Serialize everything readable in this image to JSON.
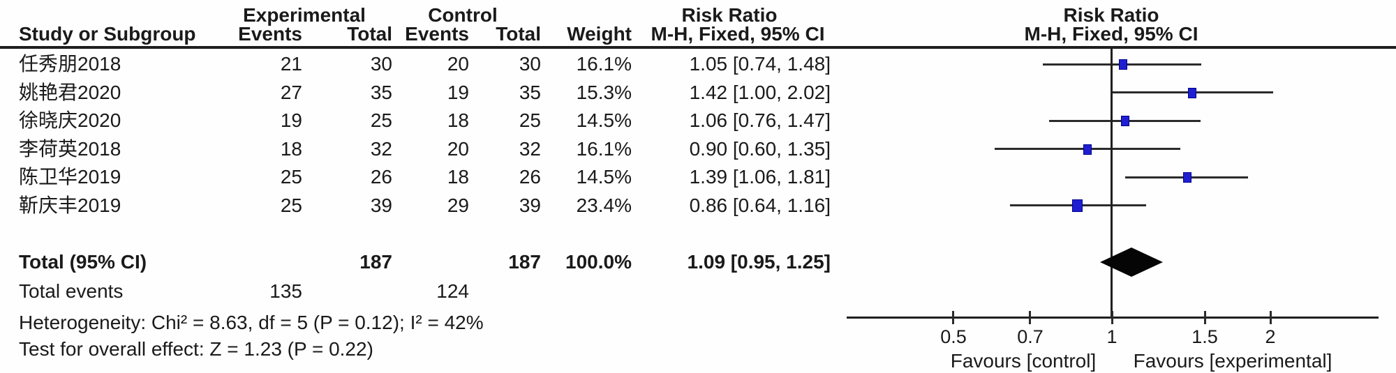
{
  "colors": {
    "marker_blue": "#1f1fd1",
    "line_dark": "#2b2b2b",
    "diamond_black": "#050505",
    "text": "#1a1a1a",
    "background": "#fefefe"
  },
  "table_header": {
    "study_col": "Study or Subgroup",
    "group_experimental": "Experimental",
    "group_control": "Control",
    "group_risk_ratio": "Risk Ratio",
    "events": "Events",
    "total": "Total",
    "events2": "Events",
    "total2": "Total",
    "weight": "Weight",
    "mh_fixed": "M-H, Fixed, 95% CI"
  },
  "plot_header": {
    "title": "Risk Ratio",
    "subtitle": "M-H, Fixed, 95% CI"
  },
  "chart_data": {
    "type": "forest",
    "x_scale": "log",
    "axis_ticks": [
      "0.5",
      "0.7",
      "1",
      "1.5",
      "2"
    ],
    "axis_tick_values": [
      0.5,
      0.7,
      1,
      1.5,
      2
    ],
    "xlim": [
      0.31,
      3.2
    ],
    "studies": [
      {
        "name": "任秀朋2018",
        "events_exp": "21",
        "total_exp": "30",
        "events_ctl": "20",
        "total_ctl": "30",
        "weight_label": "16.1%",
        "weight_pct": 16.1,
        "rr": 1.05,
        "ci_low": 0.74,
        "ci_high": 1.48,
        "rr_label": "1.05 [0.74, 1.48]"
      },
      {
        "name": "姚艳君2020",
        "events_exp": "27",
        "total_exp": "35",
        "events_ctl": "19",
        "total_ctl": "35",
        "weight_label": "15.3%",
        "weight_pct": 15.3,
        "rr": 1.42,
        "ci_low": 1.0,
        "ci_high": 2.02,
        "rr_label": "1.42 [1.00, 2.02]"
      },
      {
        "name": "徐晓庆2020",
        "events_exp": "19",
        "total_exp": "25",
        "events_ctl": "18",
        "total_ctl": "25",
        "weight_label": "14.5%",
        "weight_pct": 14.5,
        "rr": 1.06,
        "ci_low": 0.76,
        "ci_high": 1.47,
        "rr_label": "1.06 [0.76, 1.47]"
      },
      {
        "name": "李荷英2018",
        "events_exp": "18",
        "total_exp": "32",
        "events_ctl": "20",
        "total_ctl": "32",
        "weight_label": "16.1%",
        "weight_pct": 16.1,
        "rr": 0.9,
        "ci_low": 0.6,
        "ci_high": 1.35,
        "rr_label": "0.90 [0.60, 1.35]"
      },
      {
        "name": "陈卫华2019",
        "events_exp": "25",
        "total_exp": "26",
        "events_ctl": "18",
        "total_ctl": "26",
        "weight_label": "14.5%",
        "weight_pct": 14.5,
        "rr": 1.39,
        "ci_low": 1.06,
        "ci_high": 1.81,
        "rr_label": "1.39 [1.06, 1.81]"
      },
      {
        "name": "靳庆丰2019",
        "events_exp": "25",
        "total_exp": "39",
        "events_ctl": "29",
        "total_ctl": "39",
        "weight_label": "23.4%",
        "weight_pct": 23.4,
        "rr": 0.86,
        "ci_low": 0.64,
        "ci_high": 1.16,
        "rr_label": "0.86 [0.64, 1.16]"
      }
    ],
    "total": {
      "label": "Total (95% CI)",
      "total_exp": "187",
      "total_ctl": "187",
      "weight_label": "100.0%",
      "rr": 1.09,
      "ci_low": 0.95,
      "ci_high": 1.25,
      "rr_label": "1.09 [0.95, 1.25]"
    },
    "total_events": {
      "label": "Total events",
      "experimental": "135",
      "control": "124"
    },
    "heterogeneity": "Heterogeneity: Chi² = 8.63, df = 5 (P = 0.12); I² = 42%",
    "overall_effect": "Test for overall effect: Z = 1.23 (P = 0.22)",
    "favours_left": "Favours [control]",
    "favours_right": "Favours [experimental]"
  }
}
